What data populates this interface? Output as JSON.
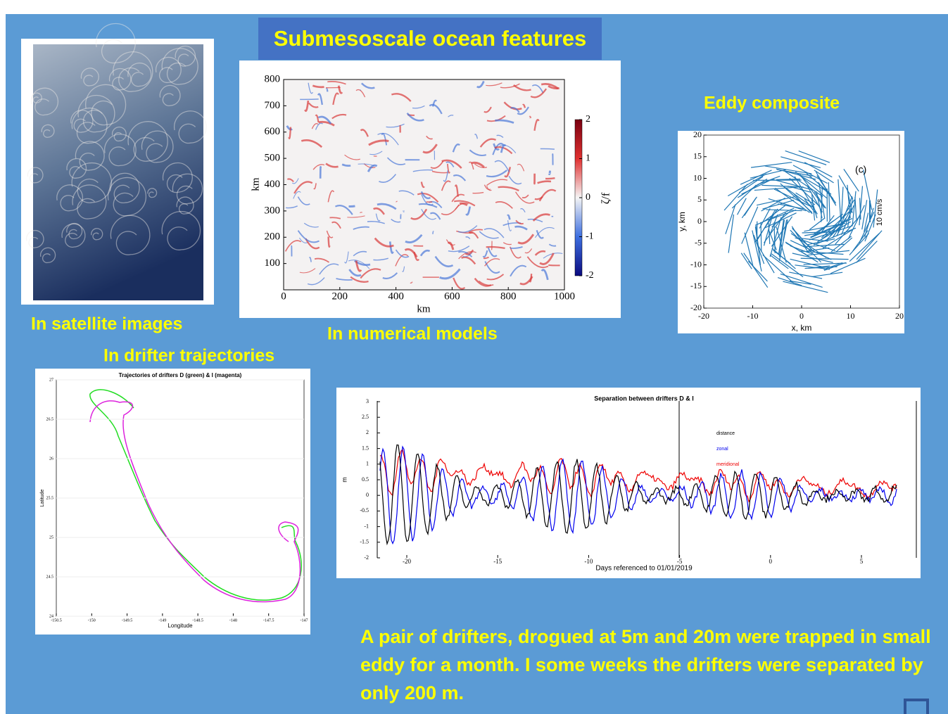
{
  "title": "Submesoscale ocean features",
  "captions": {
    "satellite": "In satellite images",
    "models": "In numerical models",
    "eddy": "Eddy composite",
    "drifters": "In drifter trajectories"
  },
  "model": {
    "xticks": [
      0,
      200,
      400,
      600,
      800,
      1000
    ],
    "yticks": [
      100,
      200,
      300,
      400,
      500,
      600,
      700,
      800
    ],
    "xlabel": "km",
    "ylabel": "km",
    "cbar_ticks": [
      2,
      1,
      0,
      -1,
      -2
    ],
    "cbar_label": "ζ/f"
  },
  "eddy": {
    "panel_label": "(c)",
    "scale_label": "10 cm/s",
    "xticks": [
      -20,
      -10,
      0,
      10,
      20
    ],
    "yticks": [
      20,
      15,
      10,
      5,
      0,
      -5,
      -10,
      -15,
      -20
    ],
    "xlabel": "x, km",
    "ylabel": "y, km"
  },
  "drifters": {
    "title": "Trajectories of drifters D (green) & I (magenta)",
    "xticks": [
      -150.5,
      -150,
      -149.5,
      -149,
      -148.5,
      -148,
      -147.5,
      -147
    ],
    "yticks": [
      24,
      24.5,
      25,
      25.5,
      26,
      26.5,
      27
    ],
    "xlabel": "Longitude",
    "ylabel": "Latitude"
  },
  "separation": {
    "title": "Separation between drifters D & I",
    "legend": [
      "distance",
      "zonal",
      "meridional"
    ],
    "xticks": [
      -20,
      -15,
      -10,
      -5,
      0,
      5
    ],
    "yticks": [
      3,
      2.5,
      2,
      1.5,
      1,
      0.5,
      0,
      -0.5,
      -1,
      -1.5,
      -2
    ],
    "xlabel": "Days referenced to 01/01/2019",
    "ylabel": "m"
  },
  "body": "A pair of drifters, drogued at 5m and 20m were trapped in small eddy for a month. I some weeks the drifters were separated by only 200 m."
}
